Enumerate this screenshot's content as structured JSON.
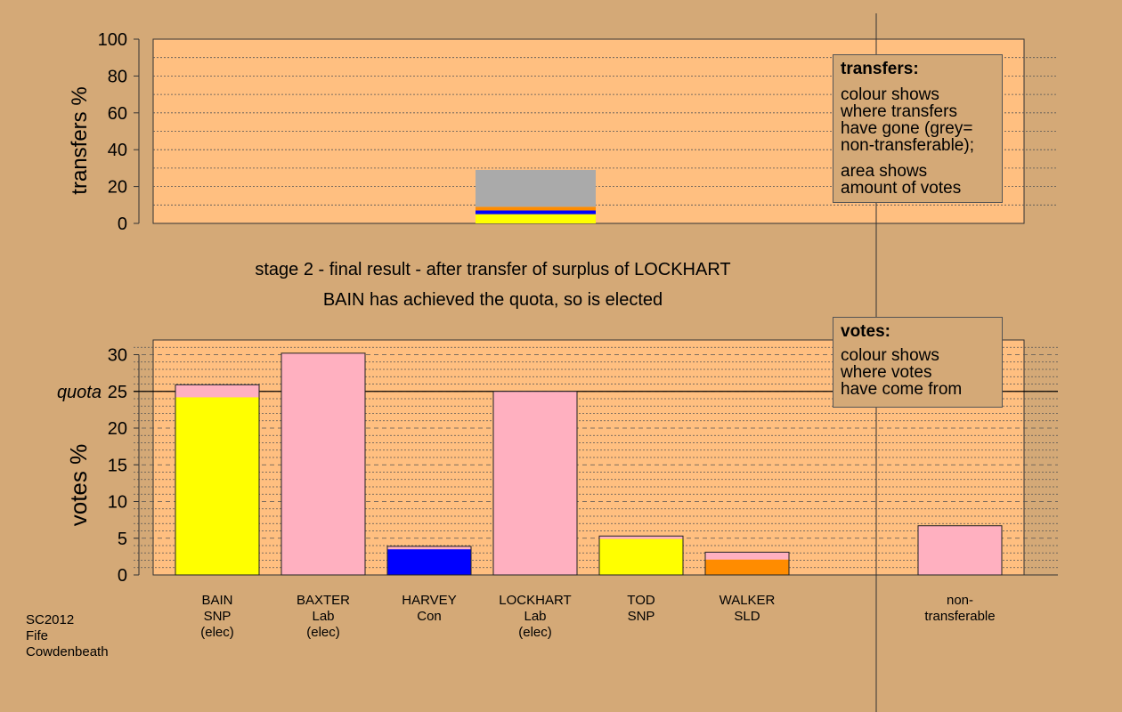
{
  "chart_data": [
    {
      "type": "bar",
      "panel": "transfers",
      "ylabel": "transfers %",
      "ylim": [
        0,
        100
      ],
      "yticks": [
        0,
        20,
        40,
        60,
        80,
        100
      ],
      "stacks": [
        {
          "category": "LOCKHART",
          "segments": [
            {
              "party": "SNP",
              "value": 5,
              "color": "#FFFF00"
            },
            {
              "party": "Con",
              "value": 2,
              "color": "#0000FF"
            },
            {
              "party": "SLD",
              "value": 2,
              "color": "#FF8C00"
            },
            {
              "party": "non-transferable",
              "value": 20,
              "color": "#AAAAAA"
            }
          ]
        }
      ]
    },
    {
      "type": "bar",
      "panel": "votes",
      "ylabel": "votes %",
      "ylim": [
        0,
        32
      ],
      "yticks": [
        0,
        5,
        10,
        15,
        20,
        25,
        30
      ],
      "quota": 25,
      "quota_label": "quota",
      "stacks": [
        {
          "category": "BAIN",
          "label_lines": [
            "BAIN",
            "SNP",
            "(elec)"
          ],
          "segments": [
            {
              "value": 24.2,
              "color": "#FFFF00"
            },
            {
              "value": 1.7,
              "color": "#FFB0C0"
            }
          ]
        },
        {
          "category": "BAXTER",
          "label_lines": [
            "BAXTER",
            "Lab",
            "(elec)"
          ],
          "segments": [
            {
              "value": 30.2,
              "color": "#FFB0C0"
            }
          ]
        },
        {
          "category": "HARVEY",
          "label_lines": [
            "HARVEY",
            "Con"
          ],
          "segments": [
            {
              "value": 3.5,
              "color": "#0000FF"
            },
            {
              "value": 0.4,
              "color": "#FFB0C0"
            }
          ]
        },
        {
          "category": "LOCKHART",
          "label_lines": [
            "LOCKHART",
            "Lab",
            "(elec)"
          ],
          "segments": [
            {
              "value": 25.0,
              "color": "#FFB0C0"
            }
          ]
        },
        {
          "category": "TOD",
          "label_lines": [
            "TOD",
            "SNP"
          ],
          "segments": [
            {
              "value": 4.9,
              "color": "#FFFF00"
            },
            {
              "value": 0.4,
              "color": "#FFB0C0"
            }
          ]
        },
        {
          "category": "WALKER",
          "label_lines": [
            "WALKER",
            "SLD"
          ],
          "segments": [
            {
              "value": 2.1,
              "color": "#FF8C00"
            },
            {
              "value": 1.0,
              "color": "#FFB0C0"
            }
          ]
        },
        {
          "category": "non-transferable",
          "label_lines": [
            "non-",
            "transferable"
          ],
          "segments": [
            {
              "value": 6.7,
              "color": "#FFB0C0"
            }
          ]
        }
      ]
    }
  ],
  "captions": {
    "stage": "stage 2 - final result - after transfer of surplus of LOCKHART",
    "result": "BAIN has achieved the quota, so is elected"
  },
  "legend_transfers": {
    "title": "transfers:",
    "lines1": [
      "colour shows",
      "where transfers",
      "have gone (grey=",
      "non-transferable);"
    ],
    "lines2": [
      "area shows",
      "amount of votes"
    ]
  },
  "legend_votes": {
    "title": "votes:",
    "lines": [
      "colour shows",
      "where votes",
      "have come from"
    ]
  },
  "footer": {
    "line1": "SC2012",
    "line2": "Fife",
    "line3": "Cowdenbeath"
  },
  "colors": {
    "background": "#D4A977",
    "plot_bg": "#FFBF80",
    "snp": "#FFFF00",
    "lab": "#FFB0C0",
    "con": "#0000FF",
    "sld": "#FF8C00",
    "nontransferable": "#AAAAAA"
  }
}
